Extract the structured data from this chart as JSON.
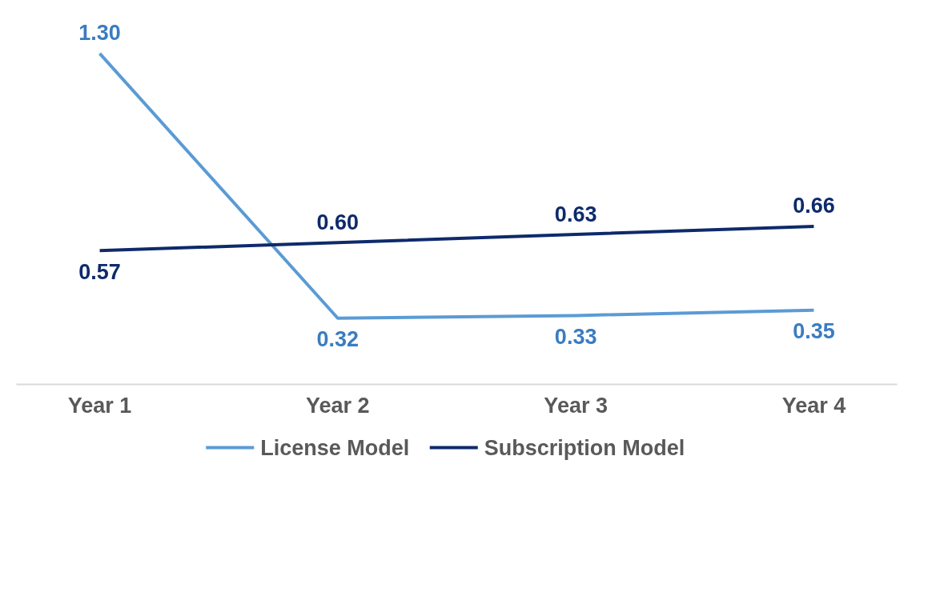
{
  "chart_data": {
    "type": "line",
    "categories": [
      "Year 1",
      "Year 2",
      "Year 3",
      "Year 4"
    ],
    "series": [
      {
        "name": "License Model",
        "color": "#5b9bd5",
        "values": [
          1.3,
          0.32,
          0.33,
          0.35
        ],
        "value_labels": [
          "1.30",
          "0.32",
          "0.33",
          "0.35"
        ]
      },
      {
        "name": "Subscription Model",
        "color": "#0e2a6b",
        "values": [
          0.57,
          0.6,
          0.63,
          0.66
        ],
        "value_labels": [
          "0.57",
          "0.60",
          "0.63",
          "0.66"
        ]
      }
    ],
    "legend": "bottom",
    "grid": false,
    "marker": "none",
    "line_style": "solid"
  }
}
